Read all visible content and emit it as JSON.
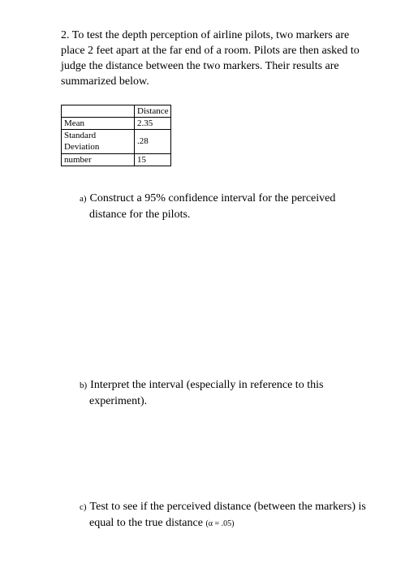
{
  "intro": "2. To test the depth perception of airline pilots, two markers are place 2 feet apart at the far end of a room. Pilots are then asked to judge the distance between the two markers. Their results are summarized below.",
  "table": {
    "header": {
      "col1": "",
      "col2": "Distance"
    },
    "rows": [
      {
        "label": "Mean",
        "value": "2.35"
      },
      {
        "label": "Standard Deviation",
        "value": ".28"
      },
      {
        "label": "number",
        "value": "15"
      }
    ]
  },
  "parts": {
    "a": {
      "label": "a)",
      "text": "Construct a 95% confidence interval for the perceived distance for the pilots."
    },
    "b": {
      "label": "b)",
      "text": "Interpret the interval (especially in reference to this experiment)."
    },
    "c": {
      "label": "c)",
      "text": "Test to see if the perceived distance (between the markers) is equal to the true distance ",
      "alpha": "(α = .05)"
    }
  }
}
